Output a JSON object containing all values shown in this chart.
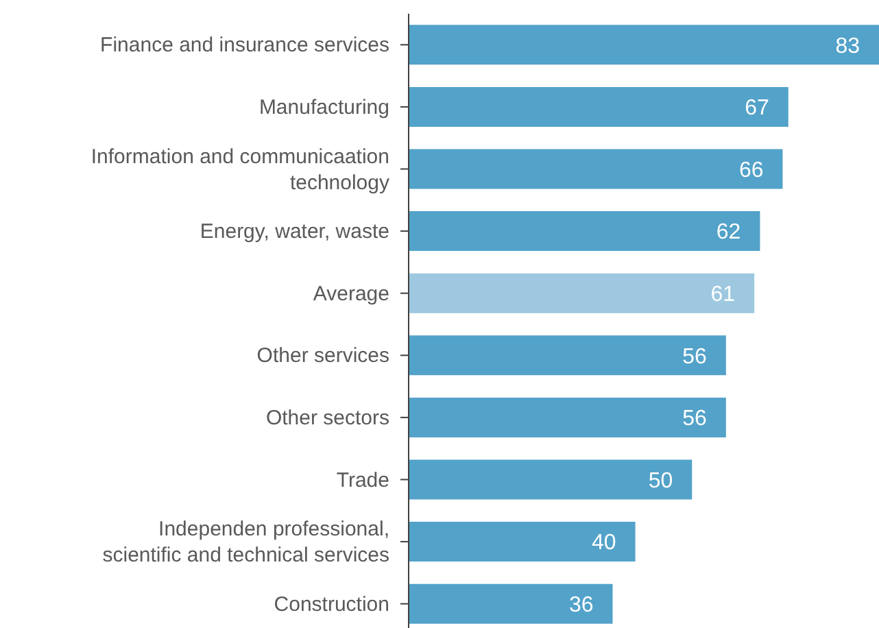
{
  "chart_data": {
    "type": "bar",
    "orientation": "horizontal",
    "categories": [
      "Finance and insurance services",
      "Manufacturing",
      "Information and communicaation technology",
      "Energy, water, waste",
      "Average",
      "Other services",
      "Other sectors",
      "Trade",
      "Independen professional, scientific and technical services",
      "Construction"
    ],
    "values": [
      83,
      67,
      66,
      62,
      61,
      56,
      56,
      50,
      40,
      36
    ],
    "colors": [
      "#53a2c9",
      "#53a2c9",
      "#53a2c9",
      "#53a2c9",
      "#9dc8df",
      "#53a2c9",
      "#53a2c9",
      "#53a2c9",
      "#53a2c9",
      "#53a2c9"
    ],
    "data_labels": true,
    "tick_labels": "y"
  }
}
